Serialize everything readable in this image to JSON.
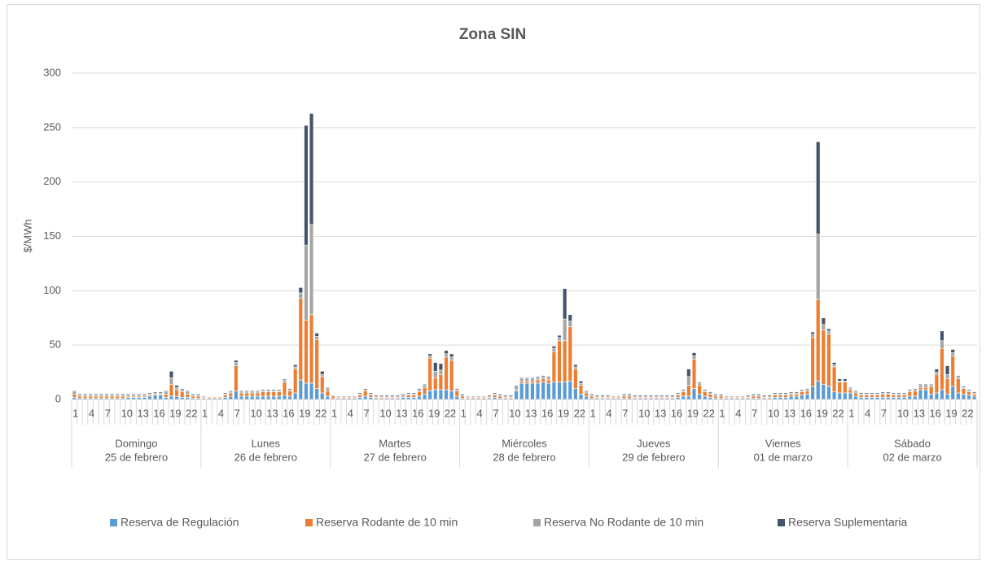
{
  "chart_data": {
    "type": "stacked_bar",
    "title": "Zona SIN",
    "y_label": "$/MWh",
    "ylim": [
      0,
      300
    ],
    "yticks": [
      0,
      50,
      100,
      150,
      200,
      250,
      300
    ],
    "grid": true,
    "legend": "bottom",
    "groups": [
      {
        "name": "Domingo",
        "date": "25 de febrero"
      },
      {
        "name": "Lunes",
        "date": "26 de febrero"
      },
      {
        "name": "Martes",
        "date": "27 de febrero"
      },
      {
        "name": "Miércoles",
        "date": "28 de febrero"
      },
      {
        "name": "Jueves",
        "date": "29 de febrero"
      },
      {
        "name": "Viernes",
        "date": "01 de marzo"
      },
      {
        "name": "Sábado",
        "date": "02 de marzo"
      }
    ],
    "categories": [
      "1",
      null,
      null,
      "4",
      null,
      null,
      "7",
      null,
      null,
      "10",
      null,
      null,
      "13",
      null,
      null,
      "16",
      null,
      null,
      "19",
      null,
      null,
      "22",
      null,
      null,
      "1",
      null,
      null,
      "4",
      null,
      null,
      "7",
      null,
      null,
      "10",
      null,
      null,
      "13",
      null,
      null,
      "16",
      null,
      null,
      "19",
      null,
      null,
      "22",
      null,
      null,
      "1",
      null,
      null,
      "4",
      null,
      null,
      "7",
      null,
      null,
      "10",
      null,
      null,
      "13",
      null,
      null,
      "16",
      null,
      null,
      "19",
      null,
      null,
      "22",
      null,
      null,
      "1",
      null,
      null,
      "4",
      null,
      null,
      "7",
      null,
      null,
      "10",
      null,
      null,
      "13",
      null,
      null,
      "16",
      null,
      null,
      "19",
      null,
      null,
      "22",
      null,
      null,
      "1",
      null,
      null,
      "4",
      null,
      null,
      "7",
      null,
      null,
      "10",
      null,
      null,
      "13",
      null,
      null,
      "16",
      null,
      null,
      "19",
      null,
      null,
      "22",
      null,
      null,
      "1",
      null,
      null,
      "4",
      null,
      null,
      "7",
      null,
      null,
      "10",
      null,
      null,
      "13",
      null,
      null,
      "16",
      null,
      null,
      "19",
      null,
      null,
      "22",
      null,
      null,
      "1",
      null,
      null,
      "4",
      null,
      null,
      "7",
      null,
      null,
      "10",
      null,
      null,
      "13",
      null,
      null,
      "16",
      null,
      null,
      "19",
      null,
      null,
      "22",
      null,
      null
    ],
    "series": [
      {
        "name": "Reserva de Regulación",
        "color": "#5b9bd5",
        "values": [
          2,
          1,
          1,
          1,
          1,
          1,
          1,
          1,
          1,
          1,
          2,
          2,
          2,
          2,
          3,
          4,
          4,
          2,
          3,
          3,
          2,
          2,
          1,
          1,
          1,
          1,
          1,
          1,
          2,
          3,
          8,
          3,
          3,
          3,
          3,
          3,
          3,
          3,
          3,
          4,
          3,
          6,
          18,
          15,
          15,
          10,
          6,
          3,
          1,
          1,
          1,
          1,
          1,
          2,
          3,
          2,
          1,
          1,
          1,
          1,
          1,
          2,
          2,
          2,
          3,
          5,
          8,
          9,
          9,
          9,
          8,
          3,
          1,
          1,
          1,
          1,
          1,
          1,
          2,
          1,
          1,
          1,
          8,
          15,
          15,
          15,
          15,
          16,
          15,
          16,
          16,
          16,
          17,
          10,
          5,
          3,
          1,
          1,
          1,
          1,
          1,
          1,
          1,
          1,
          1,
          1,
          1,
          1,
          1,
          1,
          1,
          1,
          2,
          3,
          3,
          10,
          5,
          3,
          2,
          1,
          1,
          1,
          1,
          1,
          1,
          1,
          1,
          1,
          1,
          1,
          2,
          2,
          2,
          3,
          3,
          4,
          5,
          12,
          17,
          14,
          12,
          7,
          6,
          6,
          6,
          3,
          2,
          2,
          2,
          2,
          2,
          2,
          2,
          2,
          2,
          3,
          3,
          9,
          9,
          5,
          6,
          9,
          5,
          12,
          6,
          5,
          4,
          3
        ]
      },
      {
        "name": "Reserva Rodante de 10 min",
        "color": "#ed7d31",
        "values": [
          3,
          2,
          2,
          2,
          2,
          2,
          2,
          2,
          2,
          2,
          1,
          1,
          1,
          1,
          1,
          1,
          1,
          3,
          11,
          6,
          5,
          3,
          2,
          2,
          1,
          1,
          1,
          1,
          2,
          3,
          23,
          3,
          3,
          3,
          3,
          4,
          4,
          4,
          4,
          12,
          5,
          22,
          75,
          58,
          63,
          45,
          15,
          5,
          2,
          1,
          1,
          1,
          1,
          2,
          5,
          2,
          1,
          1,
          1,
          1,
          1,
          1,
          2,
          2,
          4,
          6,
          30,
          11,
          14,
          30,
          28,
          5,
          2,
          1,
          1,
          1,
          1,
          1,
          2,
          2,
          1,
          1,
          1,
          2,
          2,
          2,
          3,
          3,
          3,
          28,
          38,
          38,
          50,
          18,
          8,
          3,
          2,
          1,
          1,
          1,
          1,
          1,
          2,
          2,
          1,
          1,
          1,
          1,
          1,
          1,
          1,
          1,
          2,
          4,
          10,
          27,
          8,
          4,
          3,
          2,
          2,
          1,
          1,
          1,
          1,
          1,
          2,
          2,
          1,
          1,
          2,
          2,
          2,
          2,
          2,
          3,
          3,
          45,
          75,
          50,
          48,
          23,
          10,
          10,
          3,
          3,
          2,
          2,
          2,
          2,
          3,
          3,
          2,
          2,
          2,
          4,
          5,
          2,
          2,
          7,
          17,
          38,
          14,
          28,
          13,
          5,
          3,
          2
        ]
      },
      {
        "name": "Reserva No Rodante de 10 min",
        "color": "#a5a5a5",
        "values": [
          2,
          1,
          1,
          1,
          1,
          1,
          1,
          1,
          1,
          1,
          1,
          1,
          1,
          1,
          1,
          1,
          1,
          2,
          6,
          2,
          2,
          2,
          1,
          1,
          1,
          0,
          0,
          0,
          1,
          1,
          3,
          1,
          1,
          1,
          1,
          1,
          1,
          1,
          1,
          2,
          1,
          2,
          5,
          69,
          83,
          3,
          2,
          2,
          1,
          1,
          1,
          1,
          1,
          1,
          1,
          1,
          1,
          1,
          1,
          1,
          1,
          1,
          1,
          1,
          2,
          2,
          2,
          6,
          4,
          3,
          3,
          1,
          1,
          1,
          1,
          1,
          1,
          1,
          1,
          1,
          1,
          1,
          4,
          2,
          2,
          2,
          2,
          2,
          2,
          3,
          3,
          20,
          5,
          2,
          2,
          1,
          1,
          1,
          1,
          1,
          1,
          1,
          1,
          1,
          1,
          1,
          1,
          1,
          1,
          1,
          1,
          1,
          1,
          1,
          8,
          3,
          2,
          1,
          1,
          1,
          1,
          1,
          1,
          1,
          1,
          1,
          1,
          1,
          1,
          1,
          1,
          1,
          1,
          1,
          1,
          1,
          1,
          3,
          60,
          5,
          3,
          2,
          1,
          1,
          1,
          1,
          1,
          1,
          1,
          1,
          1,
          1,
          1,
          1,
          1,
          1,
          1,
          2,
          2,
          1,
          2,
          7,
          4,
          3,
          2,
          1,
          1,
          1
        ]
      },
      {
        "name": "Reserva Suplementaria",
        "color": "#44546a",
        "values": [
          1,
          1,
          1,
          1,
          1,
          1,
          1,
          1,
          1,
          1,
          1,
          1,
          1,
          1,
          1,
          1,
          1,
          1,
          6,
          2,
          1,
          1,
          1,
          1,
          0,
          0,
          0,
          0,
          1,
          1,
          2,
          1,
          1,
          1,
          1,
          1,
          1,
          1,
          1,
          1,
          1,
          2,
          5,
          110,
          102,
          3,
          3,
          1,
          0,
          0,
          0,
          0,
          0,
          1,
          1,
          1,
          1,
          1,
          1,
          1,
          1,
          1,
          1,
          1,
          1,
          1,
          2,
          8,
          6,
          3,
          3,
          1,
          1,
          0,
          0,
          0,
          0,
          1,
          1,
          1,
          1,
          1,
          0,
          1,
          1,
          1,
          1,
          1,
          1,
          2,
          2,
          28,
          6,
          2,
          2,
          1,
          1,
          1,
          1,
          1,
          0,
          0,
          1,
          1,
          1,
          1,
          1,
          1,
          1,
          1,
          1,
          1,
          1,
          1,
          7,
          3,
          1,
          1,
          1,
          1,
          1,
          0,
          0,
          0,
          0,
          1,
          1,
          1,
          1,
          1,
          1,
          1,
          1,
          1,
          1,
          1,
          1,
          2,
          85,
          6,
          2,
          2,
          2,
          2,
          1,
          1,
          1,
          1,
          1,
          1,
          1,
          1,
          1,
          1,
          1,
          1,
          1,
          1,
          1,
          1,
          3,
          9,
          8,
          3,
          1,
          1,
          1,
          1
        ]
      }
    ]
  }
}
